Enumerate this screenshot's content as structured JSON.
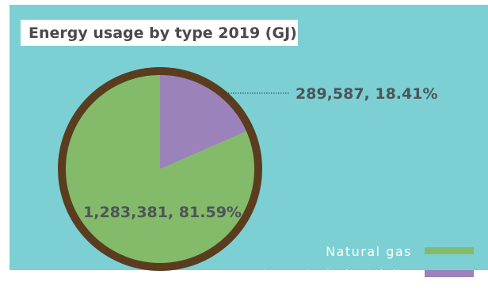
{
  "chart_data": {
    "type": "pie",
    "title": "Energy usage by type 2019 (GJ)",
    "slices": [
      {
        "name": "Imported electricity",
        "value": 289587,
        "percent": 18.41,
        "label": "289,587, 18.41%",
        "color": "#9b82bb"
      },
      {
        "name": "Natural gas",
        "value": 1283381,
        "percent": 81.59,
        "label": "1,283,381, 81.59%",
        "color": "#84bb6a"
      }
    ],
    "legend": {
      "position": "bottom-right",
      "items": [
        {
          "name": "Natural gas",
          "color": "#84bb6a"
        },
        {
          "name": "Imported electricity",
          "color": "#9b82bb"
        }
      ]
    },
    "border_color": "#5a3d1e",
    "background_color": "#7cd0d4"
  }
}
